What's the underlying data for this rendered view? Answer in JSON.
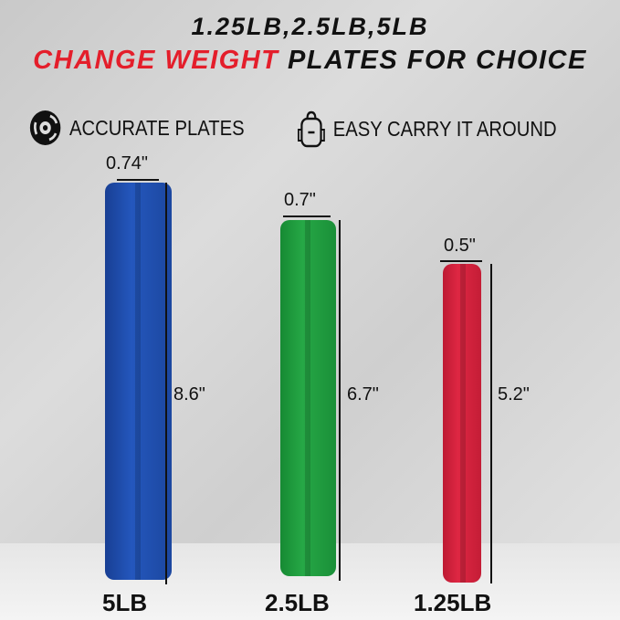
{
  "title_line1": "1.25LB,2.5LB,5LB",
  "title_line2_highlight": "CHANGE WEIGHT",
  "title_line2_rest": "PLATES FOR CHOICE",
  "features": [
    {
      "icon": "weight-plate-icon",
      "label": "ACCURATE PLATES"
    },
    {
      "icon": "backpack-icon",
      "label": "EASY CARRY IT AROUND"
    }
  ],
  "plates": [
    {
      "weight": "5LB",
      "thickness": "0.74\"",
      "diameter": "8.6\"",
      "color": "#1f4fb0"
    },
    {
      "weight": "2.5LB",
      "thickness": "0.7\"",
      "diameter": "6.7\"",
      "color": "#1f9a3c"
    },
    {
      "weight": "1.25LB",
      "thickness": "0.5\"",
      "diameter": "5.2\"",
      "color": "#d4203a"
    }
  ]
}
